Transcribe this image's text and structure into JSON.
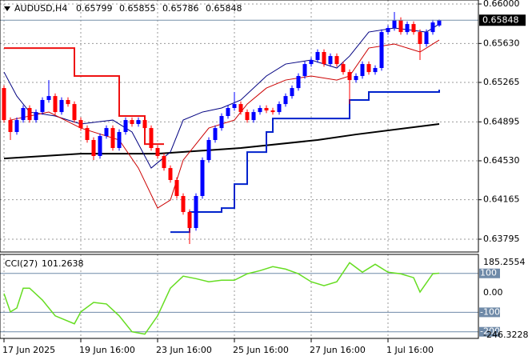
{
  "chart_data": {
    "type": "candlestick",
    "symbol": "AUDUSD,H4",
    "up_color": "#0000ff",
    "down_color": "#ff0000",
    "ylim": [
      0.63795,
      0.66
    ],
    "yticks": [
      {
        "value": 0.66,
        "label": "0.66000"
      },
      {
        "value": 0.6563,
        "label": "0.65630"
      },
      0.65265,
      0.64895,
      {
        "value": 0.6453,
        "label": "0.64530"
      },
      0.64165,
      0.63795
    ],
    "xticks": [
      {
        "value": 0,
        "label": "17 Jun 2025"
      },
      {
        "value": 12,
        "label": "19 Jun 16:00"
      },
      {
        "value": 24,
        "label": "23 Jun 16:00"
      },
      {
        "value": 36,
        "label": "25 Jun 16:00"
      },
      {
        "value": 48,
        "label": "27 Jun 16:00"
      },
      {
        "value": 60,
        "label": "1 Jul 16:00"
      }
    ],
    "ohlc": [
      [
        0.65212,
        0.65237,
        0.64887,
        0.64912
      ],
      [
        0.64912,
        0.64937,
        0.64725,
        0.648
      ],
      [
        0.648,
        0.64937,
        0.64775,
        0.64912
      ],
      [
        0.64912,
        0.6505,
        0.64887,
        0.65025
      ],
      [
        0.65025,
        0.6505,
        0.64887,
        0.64912
      ],
      [
        0.64912,
        0.65012,
        0.64887,
        0.64987
      ],
      [
        0.64987,
        0.65125,
        0.64962,
        0.651
      ],
      [
        0.651,
        0.65287,
        0.65075,
        0.65137
      ],
      [
        0.65137,
        0.65162,
        0.64962,
        0.64987
      ],
      [
        0.64987,
        0.65125,
        0.64962,
        0.651
      ],
      [
        0.651,
        0.65125,
        0.65037,
        0.65062
      ],
      [
        0.65062,
        0.65087,
        0.64887,
        0.64912
      ],
      [
        0.64912,
        0.64937,
        0.64812,
        0.64837
      ],
      [
        0.64837,
        0.64862,
        0.647,
        0.64725
      ],
      [
        0.64725,
        0.6475,
        0.64537,
        0.64575
      ],
      [
        0.64575,
        0.64787,
        0.6455,
        0.64762
      ],
      [
        0.64762,
        0.64862,
        0.64737,
        0.64837
      ],
      [
        0.64837,
        0.64862,
        0.64625,
        0.6465
      ],
      [
        0.6465,
        0.64825,
        0.64625,
        0.648
      ],
      [
        0.648,
        0.64937,
        0.64775,
        0.64912
      ],
      [
        0.64912,
        0.64937,
        0.6485,
        0.64875
      ],
      [
        0.64875,
        0.64937,
        0.6485,
        0.64912
      ],
      [
        0.64912,
        0.64937,
        0.64812,
        0.64837
      ],
      [
        0.64837,
        0.64862,
        0.64625,
        0.6465
      ],
      [
        0.6465,
        0.64675,
        0.6455,
        0.64575
      ],
      [
        0.64575,
        0.646,
        0.64437,
        0.64462
      ],
      [
        0.64462,
        0.64487,
        0.64325,
        0.6435
      ],
      [
        0.6435,
        0.64375,
        0.64175,
        0.642
      ],
      [
        0.642,
        0.64225,
        0.64025,
        0.6405
      ],
      [
        0.6405,
        0.64075,
        0.6375,
        0.639
      ],
      [
        0.639,
        0.64225,
        0.63875,
        0.642
      ],
      [
        0.642,
        0.64562,
        0.64175,
        0.64537
      ],
      [
        0.64537,
        0.6475,
        0.64512,
        0.64725
      ],
      [
        0.64725,
        0.64862,
        0.647,
        0.64837
      ],
      [
        0.64837,
        0.64975,
        0.64812,
        0.6495
      ],
      [
        0.6495,
        0.6505,
        0.64925,
        0.65025
      ],
      [
        0.65025,
        0.65175,
        0.65,
        0.65062
      ],
      [
        0.65062,
        0.65087,
        0.64962,
        0.64987
      ],
      [
        0.64987,
        0.65012,
        0.64887,
        0.64912
      ],
      [
        0.64912,
        0.65012,
        0.64887,
        0.64987
      ],
      [
        0.64987,
        0.6505,
        0.64962,
        0.65025
      ],
      [
        0.65025,
        0.6505,
        0.64977,
        0.65002
      ],
      [
        0.65002,
        0.65027,
        0.64962,
        0.64987
      ],
      [
        0.64987,
        0.65087,
        0.64962,
        0.65062
      ],
      [
        0.65062,
        0.65162,
        0.65037,
        0.65137
      ],
      [
        0.65137,
        0.65237,
        0.65112,
        0.65212
      ],
      [
        0.65212,
        0.6535,
        0.65187,
        0.65325
      ],
      [
        0.65325,
        0.65462,
        0.653,
        0.65437
      ],
      [
        0.65437,
        0.655,
        0.65412,
        0.65475
      ],
      [
        0.65475,
        0.65575,
        0.6545,
        0.6555
      ],
      [
        0.6555,
        0.65575,
        0.65412,
        0.65437
      ],
      [
        0.65437,
        0.65537,
        0.65412,
        0.65512
      ],
      [
        0.65512,
        0.65537,
        0.65412,
        0.65437
      ],
      [
        0.65437,
        0.65462,
        0.65337,
        0.65362
      ],
      [
        0.65362,
        0.65387,
        0.65062,
        0.65287
      ],
      [
        0.65287,
        0.6535,
        0.65262,
        0.65325
      ],
      [
        0.65325,
        0.65462,
        0.653,
        0.65437
      ],
      [
        0.65437,
        0.65462,
        0.65337,
        0.65362
      ],
      [
        0.65362,
        0.65425,
        0.65337,
        0.654
      ],
      [
        0.654,
        0.65762,
        0.65375,
        0.65737
      ],
      [
        0.65737,
        0.658,
        0.65712,
        0.65775
      ],
      [
        0.65775,
        0.65925,
        0.6575,
        0.6585
      ],
      [
        0.6585,
        0.65875,
        0.65712,
        0.65737
      ],
      [
        0.65737,
        0.65837,
        0.65712,
        0.65812
      ],
      [
        0.65812,
        0.65837,
        0.65712,
        0.65737
      ],
      [
        0.65737,
        0.65762,
        0.65475,
        0.65625
      ],
      [
        0.65625,
        0.65762,
        0.656,
        0.65737
      ],
      [
        0.65737,
        0.65852,
        0.65712,
        0.65827
      ],
      [
        0.65799,
        0.65855,
        0.65786,
        0.65848
      ]
    ],
    "lines": [
      {
        "color": "#000000",
        "width": 2,
        "step": false,
        "x": [
          0,
          12,
          24,
          37,
          49,
          55,
          68
        ],
        "values": [
          0.64552,
          0.64597,
          0.64597,
          0.6465,
          0.64725,
          0.64777,
          0.64875
        ]
      },
      {
        "color": "#000080",
        "width": 1,
        "step": false,
        "x": [
          0,
          2,
          4,
          8,
          12,
          17,
          20,
          23,
          26,
          28,
          31,
          34,
          37,
          41,
          44,
          48,
          52,
          54,
          57,
          61,
          66,
          68
        ],
        "values": [
          0.65362,
          0.65137,
          0.64987,
          0.6495,
          0.64875,
          0.64912,
          0.648,
          0.64462,
          0.64612,
          0.64912,
          0.64987,
          0.65025,
          0.651,
          0.65325,
          0.65437,
          0.65475,
          0.654,
          0.65512,
          0.65737,
          0.65775,
          0.65737,
          0.65812
        ]
      },
      {
        "color": "#cc0000",
        "width": 1,
        "step": false,
        "x": [
          1,
          7,
          12,
          18,
          21,
          24,
          26,
          28,
          32,
          36,
          38,
          41,
          44,
          48,
          52,
          54,
          57,
          61,
          65,
          68
        ],
        "values": [
          0.64912,
          0.64987,
          0.64837,
          0.64725,
          0.64462,
          0.64087,
          0.64162,
          0.64537,
          0.64837,
          0.64912,
          0.65062,
          0.65212,
          0.65287,
          0.65325,
          0.65287,
          0.65325,
          0.65587,
          0.65625,
          0.6555,
          0.65662
        ]
      },
      {
        "color": "#ee1111",
        "width": 2,
        "step": true,
        "x": [
          0,
          11,
          18,
          22,
          25
        ],
        "values": [
          0.65587,
          0.65325,
          0.6495,
          0.64687,
          0.64687
        ]
      },
      {
        "color": "#0022cc",
        "width": 2,
        "step": true,
        "x": [
          26,
          29,
          34,
          36,
          38,
          41,
          42,
          53,
          54,
          57,
          66,
          68
        ],
        "values": [
          0.63862,
          0.6405,
          0.64087,
          0.64312,
          0.64612,
          0.648,
          0.64927,
          0.64927,
          0.651,
          0.65175,
          0.65175,
          0.65197
        ]
      }
    ],
    "cci": {
      "label": "CCI(27)",
      "color": "#66dd22",
      "ylim": [
        -246.3228,
        185.2554
      ],
      "yticks": [
        185.2554,
        100,
        {
          "value": 0,
          "label": "0.00"
        },
        -100,
        -200,
        -246.3228
      ],
      "x": [
        0,
        1,
        2,
        3,
        4,
        6,
        8,
        11,
        12,
        14,
        16,
        18,
        20,
        22,
        24,
        26,
        28,
        30,
        32,
        34,
        36,
        38,
        40,
        42,
        44,
        46,
        48,
        50,
        52,
        54,
        56,
        58,
        60,
        62,
        64,
        65,
        67,
        68
      ],
      "values": [
        -4,
        -98,
        -78,
        24,
        24,
        -37,
        -118,
        -159,
        -98,
        -49,
        -57,
        -118,
        -200,
        -212,
        -118,
        24,
        86,
        73,
        57,
        65,
        65,
        98,
        114,
        135,
        122,
        98,
        57,
        37,
        57,
        155,
        106,
        147,
        106,
        98,
        78,
        4,
        98,
        101.2638
      ]
    }
  }
}
